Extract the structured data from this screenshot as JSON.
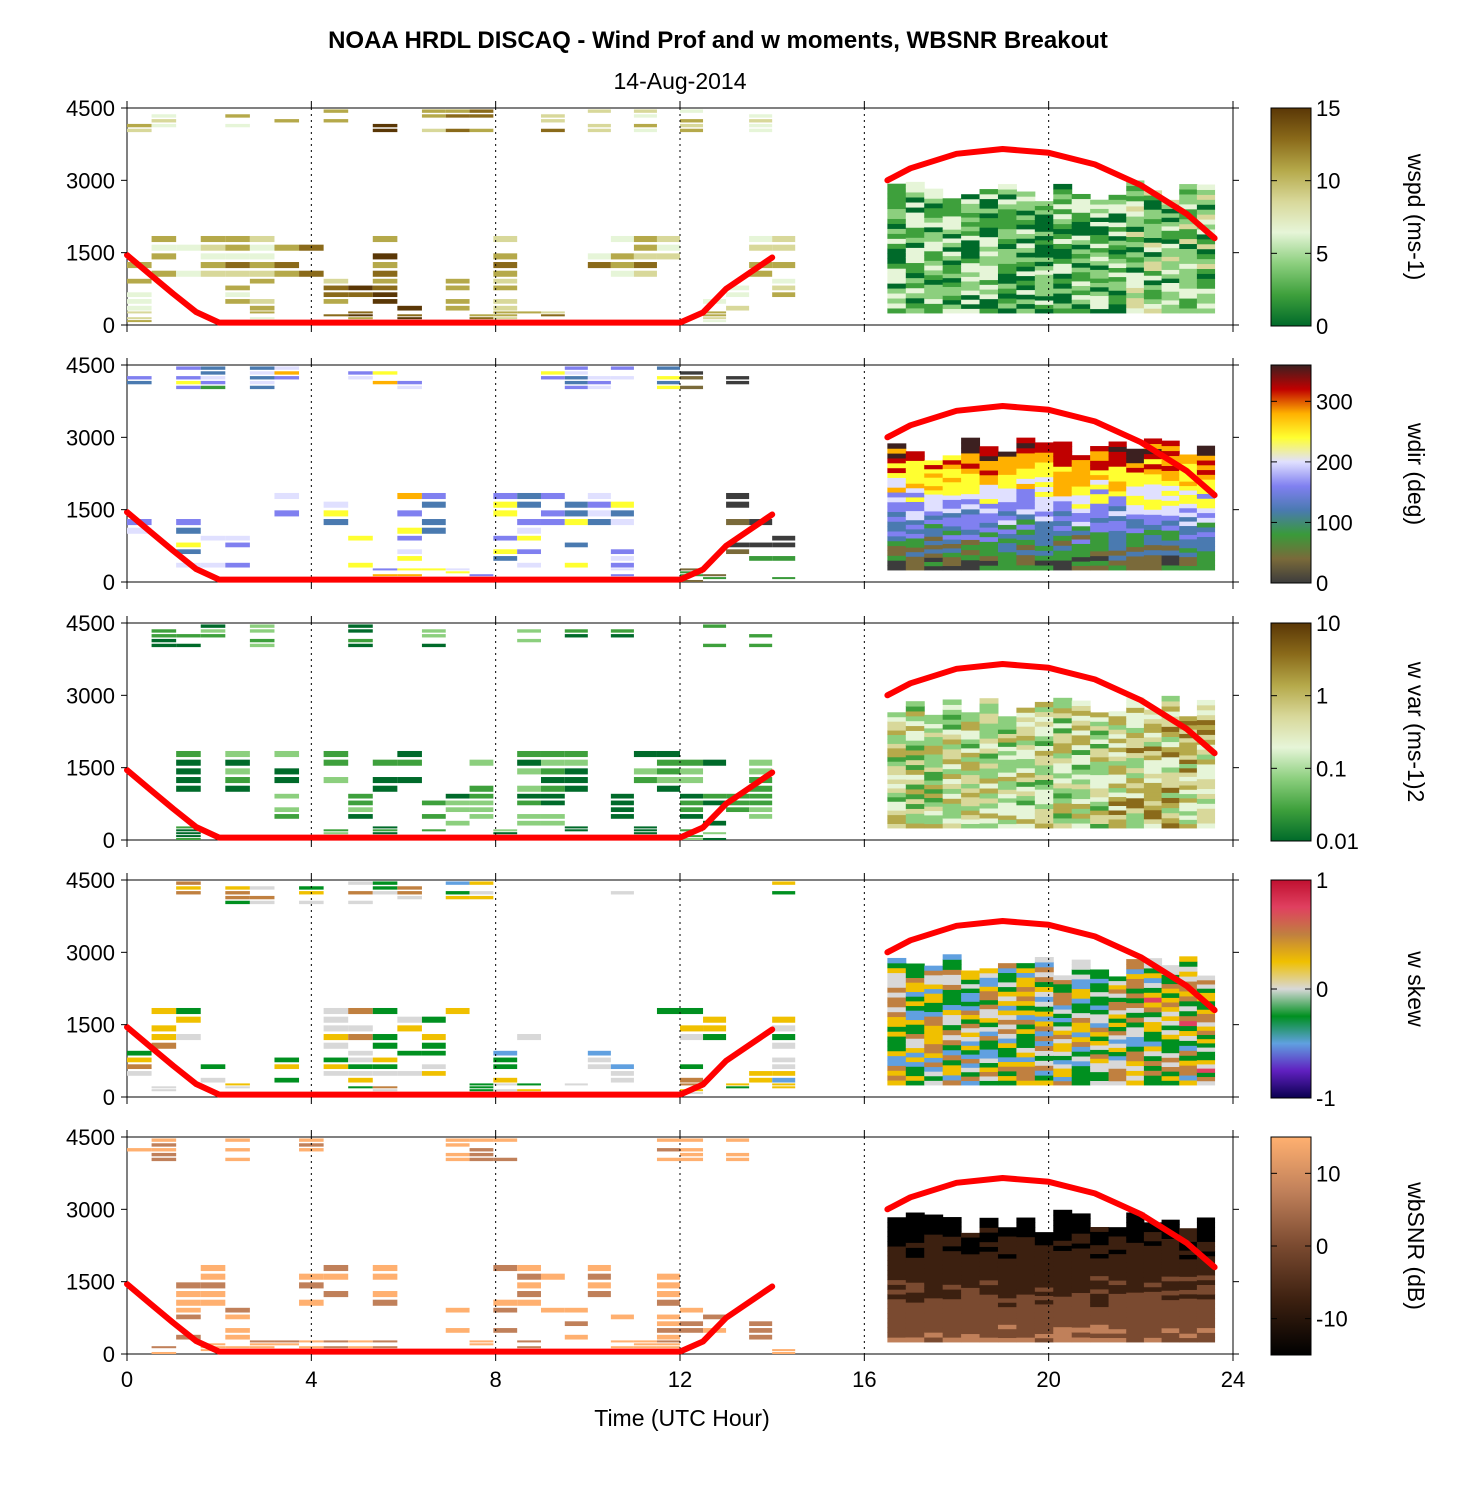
{
  "figure": {
    "title": "NOAA HRDL DISCAQ - Wind Prof and w moments, WBSNR Breakout",
    "subtitle": "14-Aug-2014",
    "xlabel": "Time (UTC Hour)",
    "xticks": [
      "0",
      "4",
      "8",
      "12",
      "16",
      "20",
      "24"
    ],
    "yticks": [
      "0",
      "1500",
      "3000",
      "4500"
    ]
  },
  "chart_data": [
    {
      "type": "heatmap",
      "name": "wspd",
      "colorbar_label": "wspd (ms-1)",
      "colorbar_ticks": [
        "0",
        "5",
        "10",
        "15"
      ],
      "colorbar_range": [
        0,
        15
      ],
      "colors": [
        "#006a2a",
        "#3ea03c",
        "#8ccf7e",
        "#e6f5d8",
        "#d8d89a",
        "#b5a94a",
        "#8a6a1a",
        "#5a3706"
      ],
      "xlim": [
        0,
        24
      ],
      "ylim": [
        0,
        4500
      ],
      "blocks_t": [
        [
          0,
          1.6
        ],
        [
          1.6,
          3.2
        ],
        [
          3.2,
          4.8
        ],
        [
          4.8,
          6.4
        ],
        [
          6.4,
          9.5
        ],
        [
          9.5,
          12
        ],
        [
          12,
          14.5
        ],
        [
          16.5,
          21.3
        ],
        [
          21.3,
          23.6
        ]
      ],
      "blocks_z": [
        [
          0,
          300
        ],
        [
          300,
          1000
        ],
        [
          1000,
          1900
        ],
        [
          4000,
          4500
        ]
      ],
      "boundary_layer": {
        "x": [
          0,
          0.5,
          1,
          1.5,
          2,
          12,
          12.5,
          13,
          14
        ],
        "y": [
          1450,
          1050,
          650,
          270,
          50,
          50,
          260,
          750,
          1400
        ]
      },
      "boundary_layer_late": {
        "x": [
          16.5,
          17,
          18,
          19,
          20,
          21,
          22,
          23,
          23.6
        ],
        "y": [
          3000,
          3250,
          3550,
          3650,
          3570,
          3330,
          2900,
          2300,
          1800
        ]
      }
    },
    {
      "type": "heatmap",
      "name": "wdir",
      "colorbar_label": "wdir (deg)",
      "colorbar_ticks": [
        "0",
        "100",
        "200",
        "300"
      ],
      "colorbar_range": [
        0,
        360
      ],
      "colors": [
        "#3c3c3c",
        "#7a6a3a",
        "#3a9a3a",
        "#4a7ab0",
        "#8080f0",
        "#e0e0ff",
        "#ffff30",
        "#ffb000",
        "#c00000",
        "#3c2020"
      ],
      "xlim": [
        0,
        24
      ],
      "ylim": [
        0,
        4500
      ]
    },
    {
      "type": "heatmap",
      "name": "w var",
      "colorbar_label": "w var (ms-1)2",
      "colorbar_ticks": [
        "0.01",
        "0.1",
        "1",
        "10"
      ],
      "colorbar_range": [
        0.01,
        10
      ],
      "colors": [
        "#006a2a",
        "#3ea03c",
        "#8ccf7e",
        "#e6f5d8",
        "#d8d89a",
        "#b5a94a",
        "#8a6a1a",
        "#5a3706"
      ],
      "xlim": [
        0,
        24
      ],
      "ylim": [
        0,
        4500
      ]
    },
    {
      "type": "heatmap",
      "name": "w skew",
      "colorbar_label": "w skew",
      "colorbar_ticks": [
        "-1",
        "0",
        "1"
      ],
      "colorbar_range": [
        -1,
        1
      ],
      "colors": [
        "#0a0050",
        "#6020c0",
        "#60a0e0",
        "#009020",
        "#d8d8d8",
        "#f0c000",
        "#c08040",
        "#e04060",
        "#c01030"
      ],
      "xlim": [
        0,
        24
      ],
      "ylim": [
        0,
        4500
      ]
    },
    {
      "type": "heatmap",
      "name": "wbSNR",
      "colorbar_label": "wbSNR (dB)",
      "colorbar_ticks": [
        "-10",
        "0",
        "10"
      ],
      "colorbar_range": [
        -15,
        15
      ],
      "colors": [
        "#000000",
        "#3c2010",
        "#7a4a30",
        "#c0805a",
        "#ffb070"
      ],
      "xlim": [
        0,
        24
      ],
      "ylim": [
        0,
        4500
      ]
    }
  ]
}
